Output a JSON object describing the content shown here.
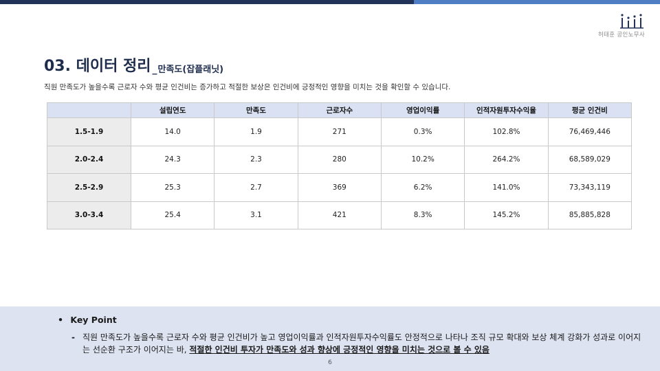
{
  "header": {
    "logo_icon": "bar-dots-logo-icon",
    "brand_name": "허태훈 공인노무사",
    "colors": {
      "dark": "#22335a",
      "light": "#4f7ec5"
    }
  },
  "slide": {
    "title": "03. 데이터 정리",
    "title_separator": "_",
    "title_sub": "만족도(잡플래닛)",
    "description": "직원 만족도가 높을수록 근로자 수와 평균 인건비는 증가하고 적절한 보상은 인건비에 긍정적인 영향을 미치는 것을 확인할 수 있습니다."
  },
  "table": {
    "headers": [
      "",
      "설립연도",
      "만족도",
      "근로자수",
      "영업이익률",
      "인적자원투자수익율",
      "평균 인건비"
    ],
    "rows": [
      [
        "1.5-1.9",
        "14.0",
        "1.9",
        "271",
        "0.3%",
        "102.8%",
        "76,469,446"
      ],
      [
        "2.0-2.4",
        "24.3",
        "2.3",
        "280",
        "10.2%",
        "264.2%",
        "68,589,029"
      ],
      [
        "2.5-2.9",
        "25.3",
        "2.7",
        "369",
        "6.2%",
        "141.0%",
        "73,343,119"
      ],
      [
        "3.0-3.4",
        "25.4",
        "3.1",
        "421",
        "8.3%",
        "145.2%",
        "85,885,828"
      ]
    ]
  },
  "key_point": {
    "bullet": "•",
    "title": "Key Point",
    "dash": "-",
    "body_plain": "직원 만족도가 높을수록 근로자 수와 평균 인건비가 높고 영업이익률과 인적자원투자수익률도 안정적으로 나타나 조직 규모 확대와 보상 체계 강화가 성과로 이어지는 선순환 구조가 이어지는 바, ",
    "body_emphasis": "적절한 인건비 투자가 만족도와 성과 향상에 긍정적인 영향을 미치는 것으로 볼 수 있음"
  },
  "page_number": "6"
}
